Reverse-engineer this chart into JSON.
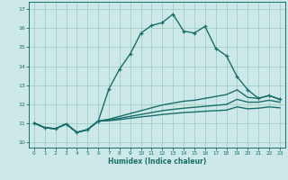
{
  "xlabel": "Humidex (Indice chaleur)",
  "xlim": [
    -0.5,
    23.5
  ],
  "ylim": [
    9.7,
    17.4
  ],
  "xticks": [
    0,
    1,
    2,
    3,
    4,
    5,
    6,
    7,
    8,
    9,
    10,
    11,
    12,
    13,
    14,
    15,
    16,
    17,
    18,
    19,
    20,
    21,
    22,
    23
  ],
  "yticks": [
    10,
    11,
    12,
    13,
    14,
    15,
    16,
    17
  ],
  "background_color": "#cce8e8",
  "grid_color": "#99ccbb",
  "line_color": "#1a6e6a",
  "lines": [
    {
      "x": [
        0,
        1,
        2,
        3,
        4,
        5,
        6,
        7,
        8,
        9,
        10,
        11,
        12,
        13,
        14,
        15,
        16,
        17,
        18,
        19,
        20,
        21,
        22,
        23
      ],
      "y": [
        11.0,
        10.75,
        10.7,
        10.95,
        10.5,
        10.65,
        11.1,
        12.8,
        13.85,
        14.65,
        15.75,
        16.15,
        16.3,
        16.75,
        15.85,
        15.75,
        16.1,
        14.95,
        14.55,
        13.45,
        12.75,
        12.3,
        12.45,
        12.25
      ],
      "marker": "+",
      "linewidth": 1.0,
      "markersize": 3.5
    },
    {
      "x": [
        0,
        1,
        2,
        3,
        4,
        5,
        6,
        7,
        8,
        9,
        10,
        11,
        12,
        13,
        14,
        15,
        16,
        17,
        18,
        19,
        20,
        21,
        22,
        23
      ],
      "y": [
        11.0,
        10.75,
        10.7,
        10.95,
        10.5,
        10.65,
        11.1,
        11.2,
        11.35,
        11.5,
        11.65,
        11.8,
        11.95,
        12.05,
        12.15,
        12.2,
        12.3,
        12.4,
        12.5,
        12.75,
        12.35,
        12.3,
        12.45,
        12.25
      ],
      "marker": null,
      "linewidth": 1.0
    },
    {
      "x": [
        0,
        1,
        2,
        3,
        4,
        5,
        6,
        7,
        8,
        9,
        10,
        11,
        12,
        13,
        14,
        15,
        16,
        17,
        18,
        19,
        20,
        21,
        22,
        23
      ],
      "y": [
        11.0,
        10.75,
        10.7,
        10.95,
        10.5,
        10.65,
        11.1,
        11.15,
        11.25,
        11.35,
        11.45,
        11.55,
        11.65,
        11.72,
        11.78,
        11.83,
        11.88,
        11.93,
        11.98,
        12.25,
        12.1,
        12.1,
        12.2,
        12.1
      ],
      "marker": null,
      "linewidth": 1.0
    },
    {
      "x": [
        0,
        1,
        2,
        3,
        4,
        5,
        6,
        7,
        8,
        9,
        10,
        11,
        12,
        13,
        14,
        15,
        16,
        17,
        18,
        19,
        20,
        21,
        22,
        23
      ],
      "y": [
        11.0,
        10.75,
        10.7,
        10.95,
        10.5,
        10.65,
        11.1,
        11.12,
        11.18,
        11.25,
        11.32,
        11.38,
        11.45,
        11.5,
        11.55,
        11.58,
        11.62,
        11.65,
        11.68,
        11.85,
        11.75,
        11.78,
        11.85,
        11.8
      ],
      "marker": null,
      "linewidth": 1.0
    }
  ]
}
